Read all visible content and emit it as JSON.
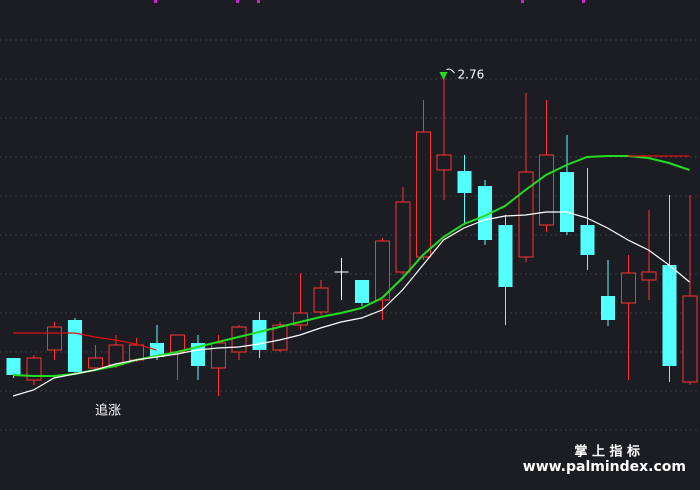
{
  "chart_data": {
    "type": "candlestick",
    "annotation": "追涨",
    "high_label": "2.76",
    "watermark": {
      "title": "掌 上 指 标",
      "url": "www.palmindex.com"
    },
    "ylim": [
      1.1,
      3.06
    ],
    "grid": true,
    "up_color": "#ff3232",
    "down_color": "#54ffff",
    "flat_color": "#ffffff",
    "open": [
      1.628,
      1.54,
      1.66,
      1.78,
      1.588,
      1.6,
      1.62,
      1.688,
      1.652,
      1.688,
      1.588,
      1.652,
      1.78,
      1.66,
      1.76,
      1.812,
      1.972,
      1.94,
      1.86,
      1.972,
      2.032,
      2.38,
      2.376,
      2.316,
      2.16,
      2.032,
      2.16,
      2.372,
      2.16,
      1.876,
      1.848,
      1.94,
      2.0,
      1.532
    ],
    "high": [
      1.628,
      1.64,
      1.772,
      1.788,
      1.68,
      1.72,
      1.708,
      1.76,
      1.72,
      1.72,
      1.72,
      1.76,
      1.812,
      1.772,
      1.968,
      1.94,
      2.028,
      1.94,
      2.108,
      2.312,
      2.66,
      2.76,
      2.44,
      2.34,
      2.2,
      2.688,
      2.66,
      2.52,
      2.388,
      2.02,
      2.04,
      2.22,
      2.28,
      2.28
    ],
    "low": [
      1.548,
      1.52,
      1.62,
      1.56,
      1.58,
      1.588,
      1.612,
      1.62,
      1.54,
      1.54,
      1.476,
      1.62,
      1.628,
      1.652,
      1.74,
      1.8,
      1.86,
      1.836,
      1.78,
      1.96,
      2.02,
      2.26,
      2.16,
      2.08,
      1.76,
      2.012,
      2.132,
      2.12,
      1.98,
      1.756,
      1.54,
      1.86,
      1.532,
      1.52
    ],
    "close": [
      1.56,
      1.628,
      1.752,
      1.572,
      1.628,
      1.68,
      1.68,
      1.632,
      1.72,
      1.596,
      1.688,
      1.752,
      1.66,
      1.76,
      1.808,
      1.908,
      1.972,
      1.848,
      2.096,
      2.252,
      2.532,
      2.44,
      2.288,
      2.1,
      1.912,
      2.372,
      2.44,
      2.132,
      2.04,
      1.78,
      1.968,
      1.972,
      1.596,
      1.876
    ],
    "series": [
      {
        "color": "#22dd22",
        "values": [
          1.56,
          1.556,
          1.556,
          1.564,
          1.58,
          1.596,
          1.62,
          1.636,
          1.652,
          1.672,
          1.692,
          1.712,
          1.732,
          1.752,
          1.772,
          1.792,
          1.808,
          1.828,
          1.868,
          1.948,
          2.04,
          2.112,
          2.164,
          2.196,
          2.236,
          2.3,
          2.36,
          2.4,
          2.432,
          2.436,
          2.436,
          2.428,
          2.408,
          2.38
        ]
      },
      {
        "color": "#ffffff",
        "values": [
          1.476,
          1.5,
          1.548,
          1.564,
          1.58,
          1.604,
          1.62,
          1.632,
          1.644,
          1.66,
          1.668,
          1.672,
          1.684,
          1.7,
          1.72,
          1.748,
          1.772,
          1.788,
          1.82,
          1.9,
          2.0,
          2.1,
          2.148,
          2.18,
          2.196,
          2.2,
          2.212,
          2.212,
          2.188,
          2.148,
          2.1,
          2.06,
          2.0,
          1.932
        ]
      },
      {
        "color": "#e01010",
        "values": [
          1.728,
          1.728,
          1.728,
          1.728,
          1.712,
          1.7,
          1.684,
          1.66,
          null,
          null,
          null,
          null,
          null,
          null,
          null,
          null,
          null,
          null,
          null,
          null,
          null,
          null,
          null,
          null,
          null,
          null,
          null,
          null,
          null,
          null,
          2.436,
          2.436,
          2.436,
          2.436
        ]
      }
    ]
  }
}
